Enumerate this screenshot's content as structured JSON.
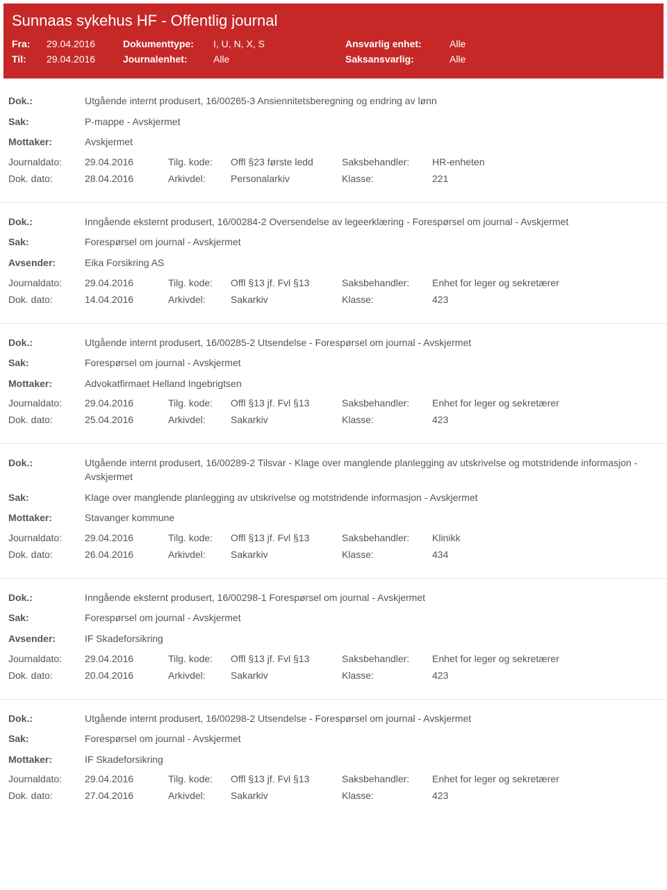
{
  "header": {
    "title": "Sunnaas sykehus HF - Offentlig journal",
    "fra_label": "Fra:",
    "fra_value": "29.04.2016",
    "til_label": "Til:",
    "til_value": "29.04.2016",
    "doktype_label": "Dokumenttype:",
    "doktype_value": "I, U, N, X, S",
    "journalenhet_label": "Journalenhet:",
    "journalenhet_value": "Alle",
    "ansvarlig_label": "Ansvarlig enhet:",
    "ansvarlig_value": "Alle",
    "saksansvarlig_label": "Saksansvarlig:",
    "saksansvarlig_value": "Alle"
  },
  "labels": {
    "dok": "Dok.:",
    "sak": "Sak:",
    "mottaker": "Mottaker:",
    "avsender": "Avsender:",
    "journaldato": "Journaldato:",
    "tilgkode": "Tilg. kode:",
    "saksbehandler": "Saksbehandler:",
    "dokdato": "Dok. dato:",
    "arkivdel": "Arkivdel:",
    "klasse": "Klasse:"
  },
  "entries": [
    {
      "dok": "Utgående internt produsert, 16/00265-3 Ansiennitetsberegning og endring av lønn",
      "sak": "P-mappe - Avskjermet",
      "party_label": "Mottaker:",
      "party": "Avskjermet",
      "journaldato": "29.04.2016",
      "tilgkode": "Offl §23 første ledd",
      "saksbehandler": "HR-enheten",
      "dokdato": "28.04.2016",
      "arkivdel": "Personalarkiv",
      "klasse": "221"
    },
    {
      "dok": "Inngående eksternt produsert, 16/00284-2 Oversendelse av legeerklæring - Forespørsel om journal - Avskjermet",
      "sak": "Forespørsel om journal - Avskjermet",
      "party_label": "Avsender:",
      "party": "Eika Forsikring AS",
      "journaldato": "29.04.2016",
      "tilgkode": "Offl §13 jf. Fvl §13",
      "saksbehandler": "Enhet for leger og sekretærer",
      "dokdato": "14.04.2016",
      "arkivdel": "Sakarkiv",
      "klasse": "423"
    },
    {
      "dok": "Utgående internt produsert, 16/00285-2 Utsendelse - Forespørsel om journal - Avskjermet",
      "sak": "Forespørsel om journal - Avskjermet",
      "party_label": "Mottaker:",
      "party": "Advokatfirmaet Helland Ingebrigtsen",
      "journaldato": "29.04.2016",
      "tilgkode": "Offl §13 jf. Fvl §13",
      "saksbehandler": "Enhet for leger og sekretærer",
      "dokdato": "25.04.2016",
      "arkivdel": "Sakarkiv",
      "klasse": "423"
    },
    {
      "dok": "Utgående internt produsert, 16/00289-2 Tilsvar - Klage over manglende planlegging av utskrivelse og motstridende informasjon - Avskjermet",
      "sak": "Klage over manglende planlegging av utskrivelse og motstridende informasjon - Avskjermet",
      "party_label": "Mottaker:",
      "party": "Stavanger kommune",
      "journaldato": "29.04.2016",
      "tilgkode": "Offl §13 jf. Fvl §13",
      "saksbehandler": "Klinikk",
      "dokdato": "26.04.2016",
      "arkivdel": "Sakarkiv",
      "klasse": "434"
    },
    {
      "dok": "Inngående eksternt produsert, 16/00298-1 Forespørsel om journal - Avskjermet",
      "sak": "Forespørsel om journal - Avskjermet",
      "party_label": "Avsender:",
      "party": "IF Skadeforsikring",
      "journaldato": "29.04.2016",
      "tilgkode": "Offl §13 jf. Fvl §13",
      "saksbehandler": "Enhet for leger og sekretærer",
      "dokdato": "20.04.2016",
      "arkivdel": "Sakarkiv",
      "klasse": "423"
    },
    {
      "dok": "Utgående internt produsert, 16/00298-2 Utsendelse - Forespørsel om journal - Avskjermet",
      "sak": "Forespørsel om journal - Avskjermet",
      "party_label": "Mottaker:",
      "party": "IF Skadeforsikring",
      "journaldato": "29.04.2016",
      "tilgkode": "Offl §13 jf. Fvl §13",
      "saksbehandler": "Enhet for leger og sekretærer",
      "dokdato": "27.04.2016",
      "arkivdel": "Sakarkiv",
      "klasse": "423"
    }
  ]
}
